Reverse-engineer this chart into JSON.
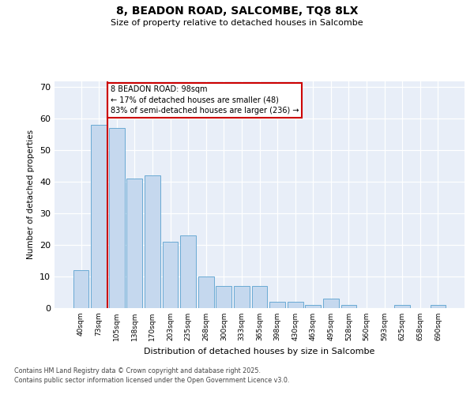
{
  "title": "8, BEADON ROAD, SALCOMBE, TQ8 8LX",
  "subtitle": "Size of property relative to detached houses in Salcombe",
  "xlabel": "Distribution of detached houses by size in Salcombe",
  "ylabel": "Number of detached properties",
  "bar_labels": [
    "40sqm",
    "73sqm",
    "105sqm",
    "138sqm",
    "170sqm",
    "203sqm",
    "235sqm",
    "268sqm",
    "300sqm",
    "333sqm",
    "365sqm",
    "398sqm",
    "430sqm",
    "463sqm",
    "495sqm",
    "528sqm",
    "560sqm",
    "593sqm",
    "625sqm",
    "658sqm",
    "690sqm"
  ],
  "bar_values": [
    12,
    58,
    57,
    41,
    42,
    21,
    23,
    10,
    7,
    7,
    7,
    2,
    2,
    1,
    3,
    1,
    0,
    0,
    1,
    0,
    1
  ],
  "bar_color": "#c5d8ee",
  "bar_edge_color": "#6aaad4",
  "background_color": "#e8eef8",
  "grid_color": "#ffffff",
  "vline_x": 1.5,
  "vline_color": "#cc0000",
  "annotation_text": "8 BEADON ROAD: 98sqm\n← 17% of detached houses are smaller (48)\n83% of semi-detached houses are larger (236) →",
  "annotation_box_edgecolor": "#cc0000",
  "ylim": [
    0,
    72
  ],
  "yticks": [
    0,
    10,
    20,
    30,
    40,
    50,
    60,
    70
  ],
  "footer_line1": "Contains HM Land Registry data © Crown copyright and database right 2025.",
  "footer_line2": "Contains public sector information licensed under the Open Government Licence v3.0."
}
